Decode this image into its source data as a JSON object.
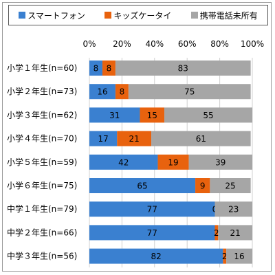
{
  "chart_data": {
    "type": "bar",
    "orientation": "horizontal",
    "stacked": true,
    "categories": [
      "小学１年生(n=60)",
      "小学２年生(n=73)",
      "小学３年生(n=62)",
      "小学４年生(n=70)",
      "小学５年生(n=59)",
      "小学６年生(n=75)",
      "中学１年生(n=79)",
      "中学２年生(n=66)",
      "中学３年生(n=56)"
    ],
    "series": [
      {
        "name": "スマートフォン",
        "color": "#3a80d0",
        "values": [
          8,
          16,
          31,
          17,
          42,
          65,
          77,
          77,
          82
        ]
      },
      {
        "name": "キッズケータイ",
        "color": "#e8620e",
        "values": [
          8,
          8,
          15,
          21,
          19,
          9,
          0,
          2,
          2
        ]
      },
      {
        "name": "携帯電話未所有",
        "color": "#a6a6a6",
        "values": [
          83,
          75,
          55,
          61,
          39,
          25,
          23,
          21,
          16
        ]
      }
    ],
    "xlim": [
      0,
      100
    ],
    "ticks": [
      0,
      20,
      40,
      60,
      80,
      100
    ],
    "tick_labels": [
      "0%",
      "20%",
      "40%",
      "60%",
      "80%",
      "100%"
    ],
    "legend_position": "top",
    "grid": true
  }
}
